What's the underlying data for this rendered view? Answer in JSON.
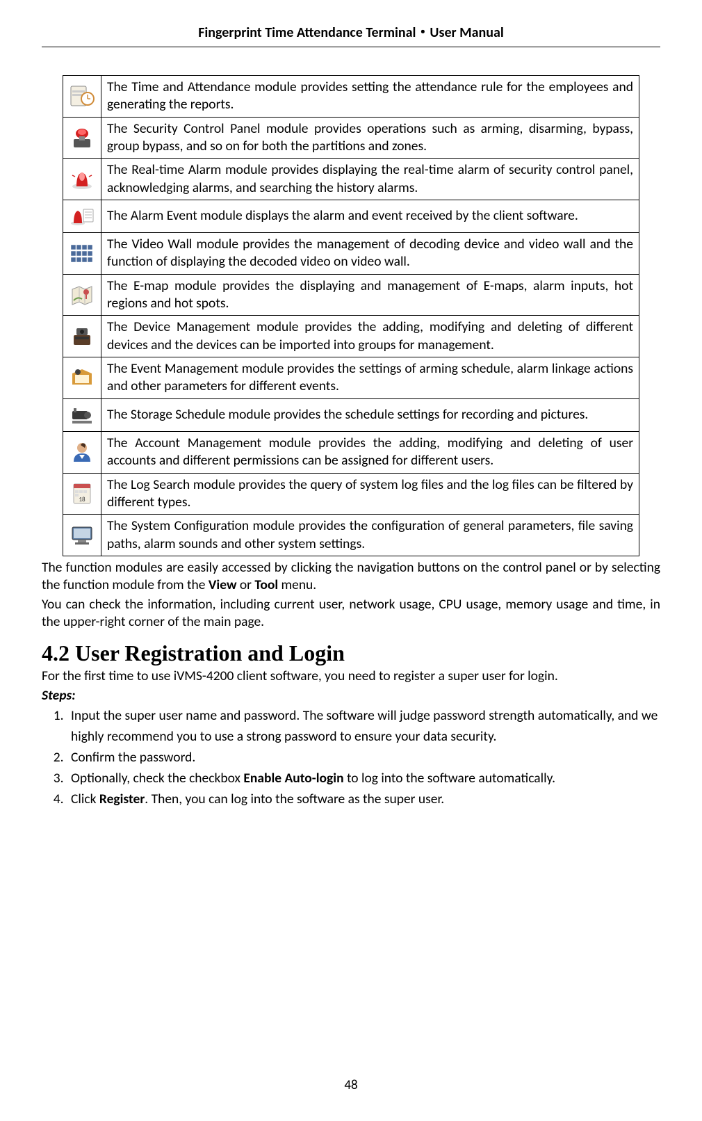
{
  "header": {
    "title": "Fingerprint Time Attendance Terminal・User Manual"
  },
  "modules": [
    {
      "name": "time-attendance",
      "icon_colors": {
        "bg": "#f4efe2",
        "accent": "#d08c3a",
        "accent2": "#7aa0c4"
      },
      "description": "The Time and Attendance module provides setting the attendance rule for the employees and generating the reports."
    },
    {
      "name": "security-control",
      "icon_colors": {
        "bg": "#d0d0d0",
        "accent": "#d32121",
        "accent2": "#555555"
      },
      "description": "The Security Control Panel module provides operations such as arming, disarming, bypass, group bypass, and so on for both the partitions and zones."
    },
    {
      "name": "realtime-alarm",
      "icon_colors": {
        "bg": "#ffffff",
        "accent": "#d32121",
        "accent2": "#f0c0c0"
      },
      "description": "The Real-time Alarm module provides displaying the real-time alarm of security control panel, acknowledging alarms, and searching the history alarms."
    },
    {
      "name": "alarm-event",
      "icon_colors": {
        "bg": "#ffffff",
        "accent": "#d32121",
        "accent2": "#888888"
      },
      "description": "The Alarm Event module displays the alarm and event received by the client software."
    },
    {
      "name": "video-wall",
      "icon_colors": {
        "bg": "#ffffff",
        "accent": "#4a6a9a",
        "accent2": "#7a92b5"
      },
      "description": "The Video Wall module provides the management of decoding device and video wall and the function of displaying the decoded video on video wall."
    },
    {
      "name": "e-map",
      "icon_colors": {
        "bg": "#f0ead6",
        "accent": "#6a9a4a",
        "accent2": "#c94f4f"
      },
      "description": "The E-map module provides the displaying and management of E-maps, alarm inputs, hot regions and hot spots."
    },
    {
      "name": "device-management",
      "icon_colors": {
        "bg": "#ffffff",
        "accent": "#5a3d28",
        "accent2": "#3a3a3a"
      },
      "description": "The Device Management module provides the adding, modifying and deleting of different devices and the devices can be imported into groups for management."
    },
    {
      "name": "event-management",
      "icon_colors": {
        "bg": "#ffffff",
        "accent": "#d89a3a",
        "accent2": "#3a3a3a"
      },
      "description": "The Event Management module provides the settings of arming schedule, alarm linkage actions and other parameters for different events."
    },
    {
      "name": "storage-schedule",
      "icon_colors": {
        "bg": "#ffffff",
        "accent": "#3a3a3a",
        "accent2": "#777777"
      },
      "description": "The Storage Schedule module provides the schedule settings for recording and pictures."
    },
    {
      "name": "account-management",
      "icon_colors": {
        "bg": "#ffffff",
        "accent": "#3a6ab5",
        "accent2": "#e0b088"
      },
      "description": "The Account Management module provides the adding, modifying and deleting of user accounts and different permissions can be assigned for different users."
    },
    {
      "name": "log-search",
      "icon_colors": {
        "bg": "#f4efe2",
        "accent": "#c94f4f",
        "accent2": "#555555"
      },
      "description": "The Log Search module provides the query of system log files and the log files can be filtered by different types."
    },
    {
      "name": "system-config",
      "icon_colors": {
        "bg": "#ffffff",
        "accent": "#5a7aa0",
        "accent2": "#3a3a3a"
      },
      "description": "The System Configuration module provides the configuration of general parameters, file saving paths, alarm sounds and other system settings."
    }
  ],
  "paragraphs": {
    "p1_a": "The function modules are easily accessed by clicking the navigation buttons on the control panel or by selecting the function module from the ",
    "p1_b": "View",
    "p1_c": " or ",
    "p1_d": "Tool",
    "p1_e": " menu.",
    "p2": "You can check the information, including current user, network usage, CPU usage, memory usage and time, in the upper-right corner of the main page."
  },
  "section": {
    "number": "4.2",
    "title": "User Registration and Login",
    "intro": "For the first time to use iVMS-4200 client software, you need to register a super user for login.",
    "steps_label": "Steps:",
    "steps": [
      "Input the super user name and password. The software will judge password strength automatically, and we highly recommend you to use a strong password to ensure your data security.",
      "Confirm the password.",
      [
        "Optionally, check the checkbox ",
        "Enable Auto-login",
        " to log into the software automatically."
      ],
      [
        "Click ",
        "Register",
        ". Then, you can log into the software as the super user."
      ]
    ]
  },
  "page_number": "48"
}
